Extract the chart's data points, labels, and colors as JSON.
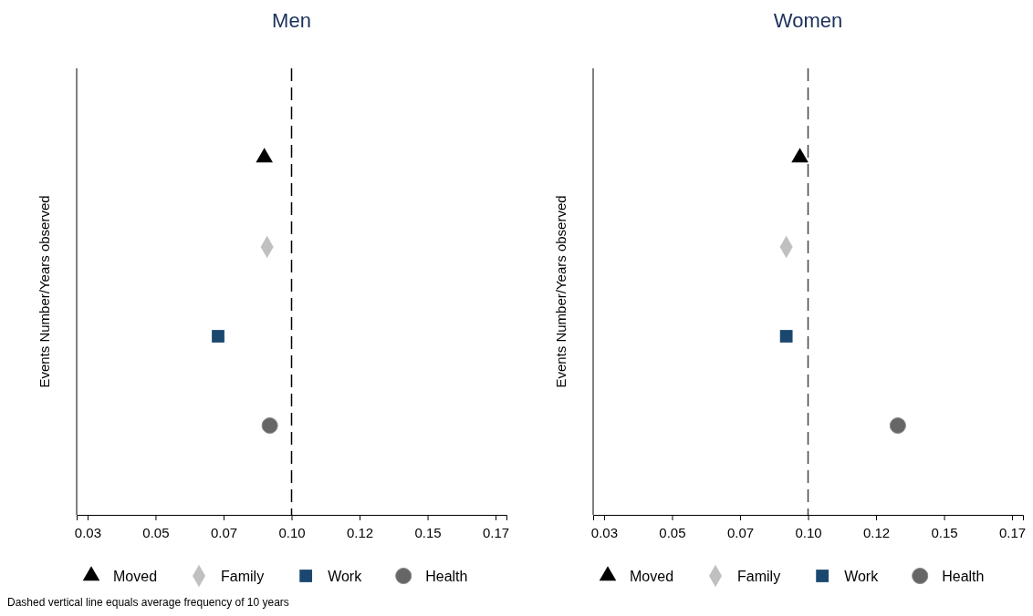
{
  "chart_data": [
    {
      "type": "scatter",
      "title": "Men",
      "ylabel": "Events Number/Years observed",
      "orientation": "horizontal",
      "categories": [
        null,
        null,
        null,
        null
      ],
      "xlim": [
        0.021,
        0.179
      ],
      "xticks": [
        {
          "value": 0.025,
          "label": "0.03"
        },
        {
          "value": 0.05,
          "label": "0.05"
        },
        {
          "value": 0.075,
          "label": "0.07"
        },
        {
          "value": 0.1,
          "label": "0.10"
        },
        {
          "value": 0.125,
          "label": "0.12"
        },
        {
          "value": 0.15,
          "label": "0.15"
        },
        {
          "value": 0.175,
          "label": "0.17"
        }
      ],
      "tick_labels": "x",
      "legend": "bottom",
      "series": [
        {
          "name": "Moved",
          "color": "#000000",
          "marker": "triangle",
          "values": [
            0.09,
            null,
            null,
            null
          ]
        },
        {
          "name": "Family",
          "color": "#c0c0c0",
          "marker": "diamond",
          "values": [
            null,
            0.091,
            null,
            null
          ]
        },
        {
          "name": "Work",
          "color": "#1a476f",
          "marker": "square",
          "values": [
            null,
            null,
            0.073,
            null
          ]
        },
        {
          "name": "Health",
          "color": "#666666",
          "marker": "circle",
          "values": [
            null,
            null,
            null,
            0.092
          ]
        }
      ],
      "ref_lines": [
        {
          "axis": "x",
          "value": 0.1,
          "line_style": "dashed",
          "color": "#000000"
        }
      ],
      "annotations": [
        "Dashed vertical line equals average frequency of 10 years"
      ]
    },
    {
      "type": "scatter",
      "title": "Women",
      "ylabel": "Events Number/Years observed",
      "orientation": "horizontal",
      "categories": [
        null,
        null,
        null,
        null
      ],
      "xlim": [
        0.021,
        0.179
      ],
      "xticks": [
        {
          "value": 0.025,
          "label": "0.03"
        },
        {
          "value": 0.05,
          "label": "0.05"
        },
        {
          "value": 0.075,
          "label": "0.07"
        },
        {
          "value": 0.1,
          "label": "0.10"
        },
        {
          "value": 0.125,
          "label": "0.12"
        },
        {
          "value": 0.15,
          "label": "0.15"
        },
        {
          "value": 0.175,
          "label": "0.17"
        }
      ],
      "tick_labels": "x",
      "legend": "bottom",
      "series": [
        {
          "name": "Moved",
          "color": "#000000",
          "marker": "triangle",
          "values": [
            0.097,
            null,
            null,
            null
          ]
        },
        {
          "name": "Family",
          "color": "#c0c0c0",
          "marker": "diamond",
          "values": [
            null,
            0.092,
            null,
            null
          ]
        },
        {
          "name": "Work",
          "color": "#1a476f",
          "marker": "square",
          "values": [
            null,
            null,
            0.092,
            null
          ]
        },
        {
          "name": "Health",
          "color": "#666666",
          "marker": "circle",
          "values": [
            null,
            null,
            null,
            0.133
          ]
        }
      ],
      "ref_lines": [
        {
          "axis": "x",
          "value": 0.1,
          "line_style": "dashed",
          "color": "#444444"
        }
      ]
    }
  ]
}
